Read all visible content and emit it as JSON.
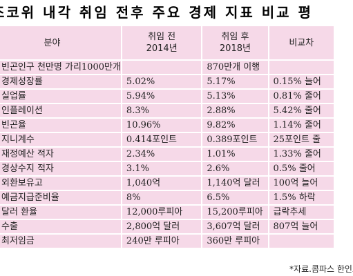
{
  "title": "조코위 내각 취임 전후 주요 경제 지표 비교 평",
  "header": {
    "col1": "분야",
    "col2_line1": "취임 전",
    "col2_line2": "2014년",
    "col3_line1": "취임 후",
    "col3_line2": "2018년",
    "col4": "비교차"
  },
  "rows": [
    {
      "field": "빈곤인구 천만명 가리1000만개",
      "before": "",
      "after": "870만개 이행",
      "diff": ""
    },
    {
      "field": "경제성장률",
      "before": "5.02%",
      "after": "5.17%",
      "diff": "0.15% 늘어"
    },
    {
      "field": "실업률",
      "before": "5.94%",
      "after": "5.13%",
      "diff": "0.81% 줄어"
    },
    {
      "field": "인플레이션",
      "before": "8.3%",
      "after": "2.88%",
      "diff": "5.42% 줄어"
    },
    {
      "field": "빈곤율",
      "before": "10.96%",
      "after": "9.82%",
      "diff": "1.14% 줄어"
    },
    {
      "field": "지니계수",
      "before": "0.414포인트",
      "after": "0.389포인트",
      "diff": "25포인트 줄"
    },
    {
      "field": "재정예산 적자",
      "before": "2.34%",
      "after": "1.01%",
      "diff": "1.33% 줄어"
    },
    {
      "field": "경상수지 적자",
      "before": "3.1%",
      "after": "2.6%",
      "diff": "0.5% 줄어"
    },
    {
      "field": "외환보유고",
      "before": "1,040억",
      "after": "1,140억 달러",
      "diff": "100억 늘어"
    },
    {
      "field": "예금지급준비율",
      "before": "8%",
      "after": "6.5%",
      "diff": "1.5% 하락"
    },
    {
      "field": "달러 환율",
      "before": "12,000루피아",
      "after": "15,200루피아",
      "diff": "급락추세"
    },
    {
      "field": "수출",
      "before": "2,800억 달러",
      "after": "3,607억 달러",
      "diff": "807억 늘어"
    },
    {
      "field": "최저임금",
      "before": "240만 루피아",
      "after": "360만 루피아",
      "diff": ""
    }
  ],
  "source": "*자료.콤파스 한인포"
}
